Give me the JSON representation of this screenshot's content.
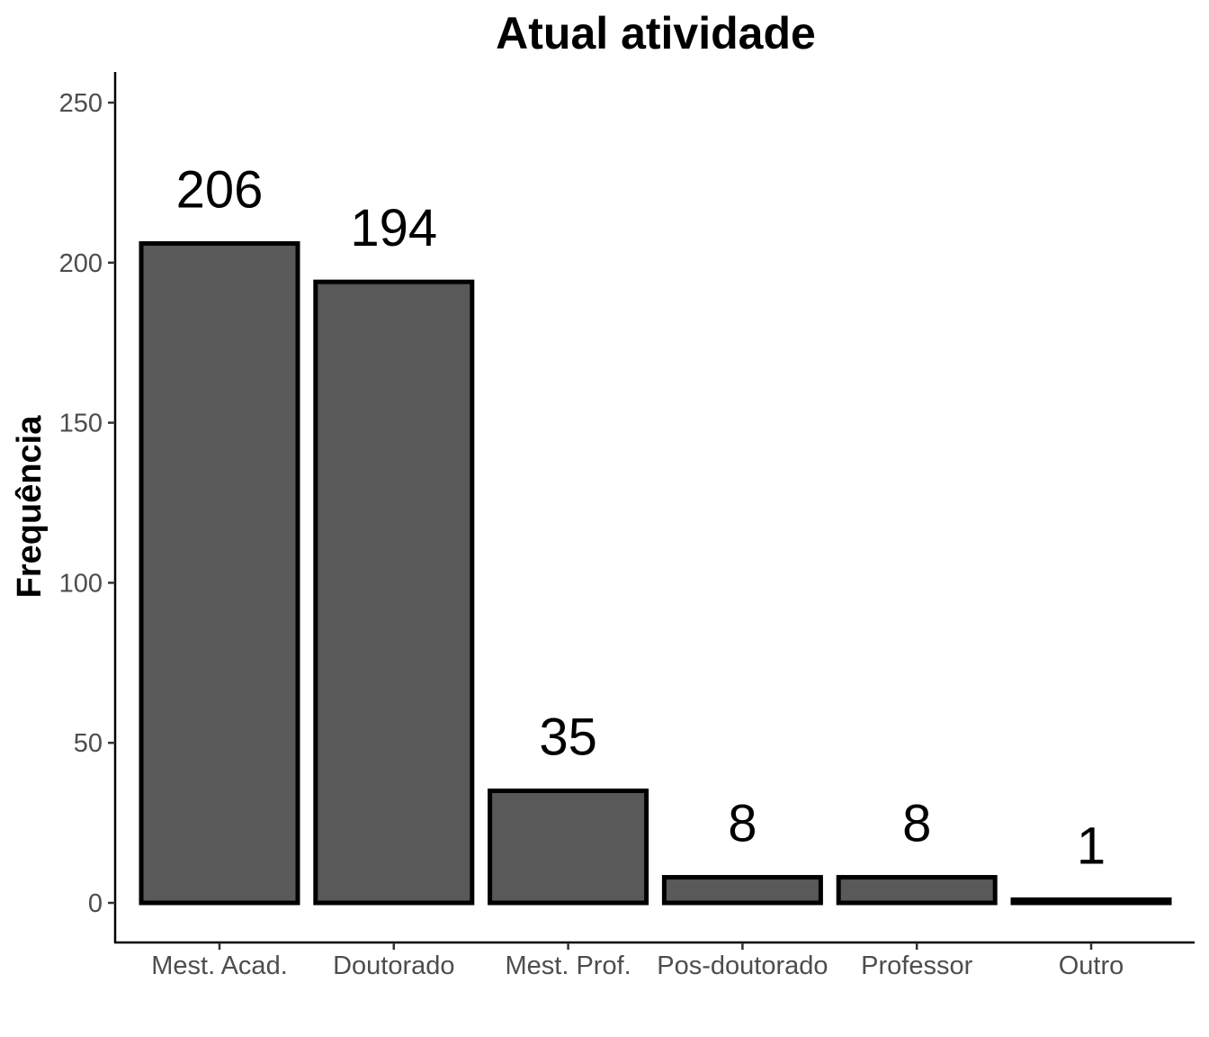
{
  "chart_data": {
    "type": "bar",
    "title": "Atual atividade",
    "xlabel": "",
    "ylabel": "Frequência",
    "categories": [
      "Mest. Acad.",
      "Doutorado",
      "Mest. Prof.",
      "Pos-doutorado",
      "Professor",
      "Outro"
    ],
    "values": [
      206,
      194,
      35,
      8,
      8,
      1
    ],
    "data_labels": [
      "206",
      "194",
      "35",
      "8",
      "8",
      "1"
    ],
    "yticks": [
      0,
      50,
      100,
      150,
      200,
      250
    ],
    "ylim": [
      -12,
      260
    ],
    "grid": false,
    "legend": "none",
    "colors": {
      "bar_fill": "#595959",
      "bar_stroke": "#000000",
      "axis": "#000000",
      "tick_text": "#4d4d4d"
    }
  }
}
